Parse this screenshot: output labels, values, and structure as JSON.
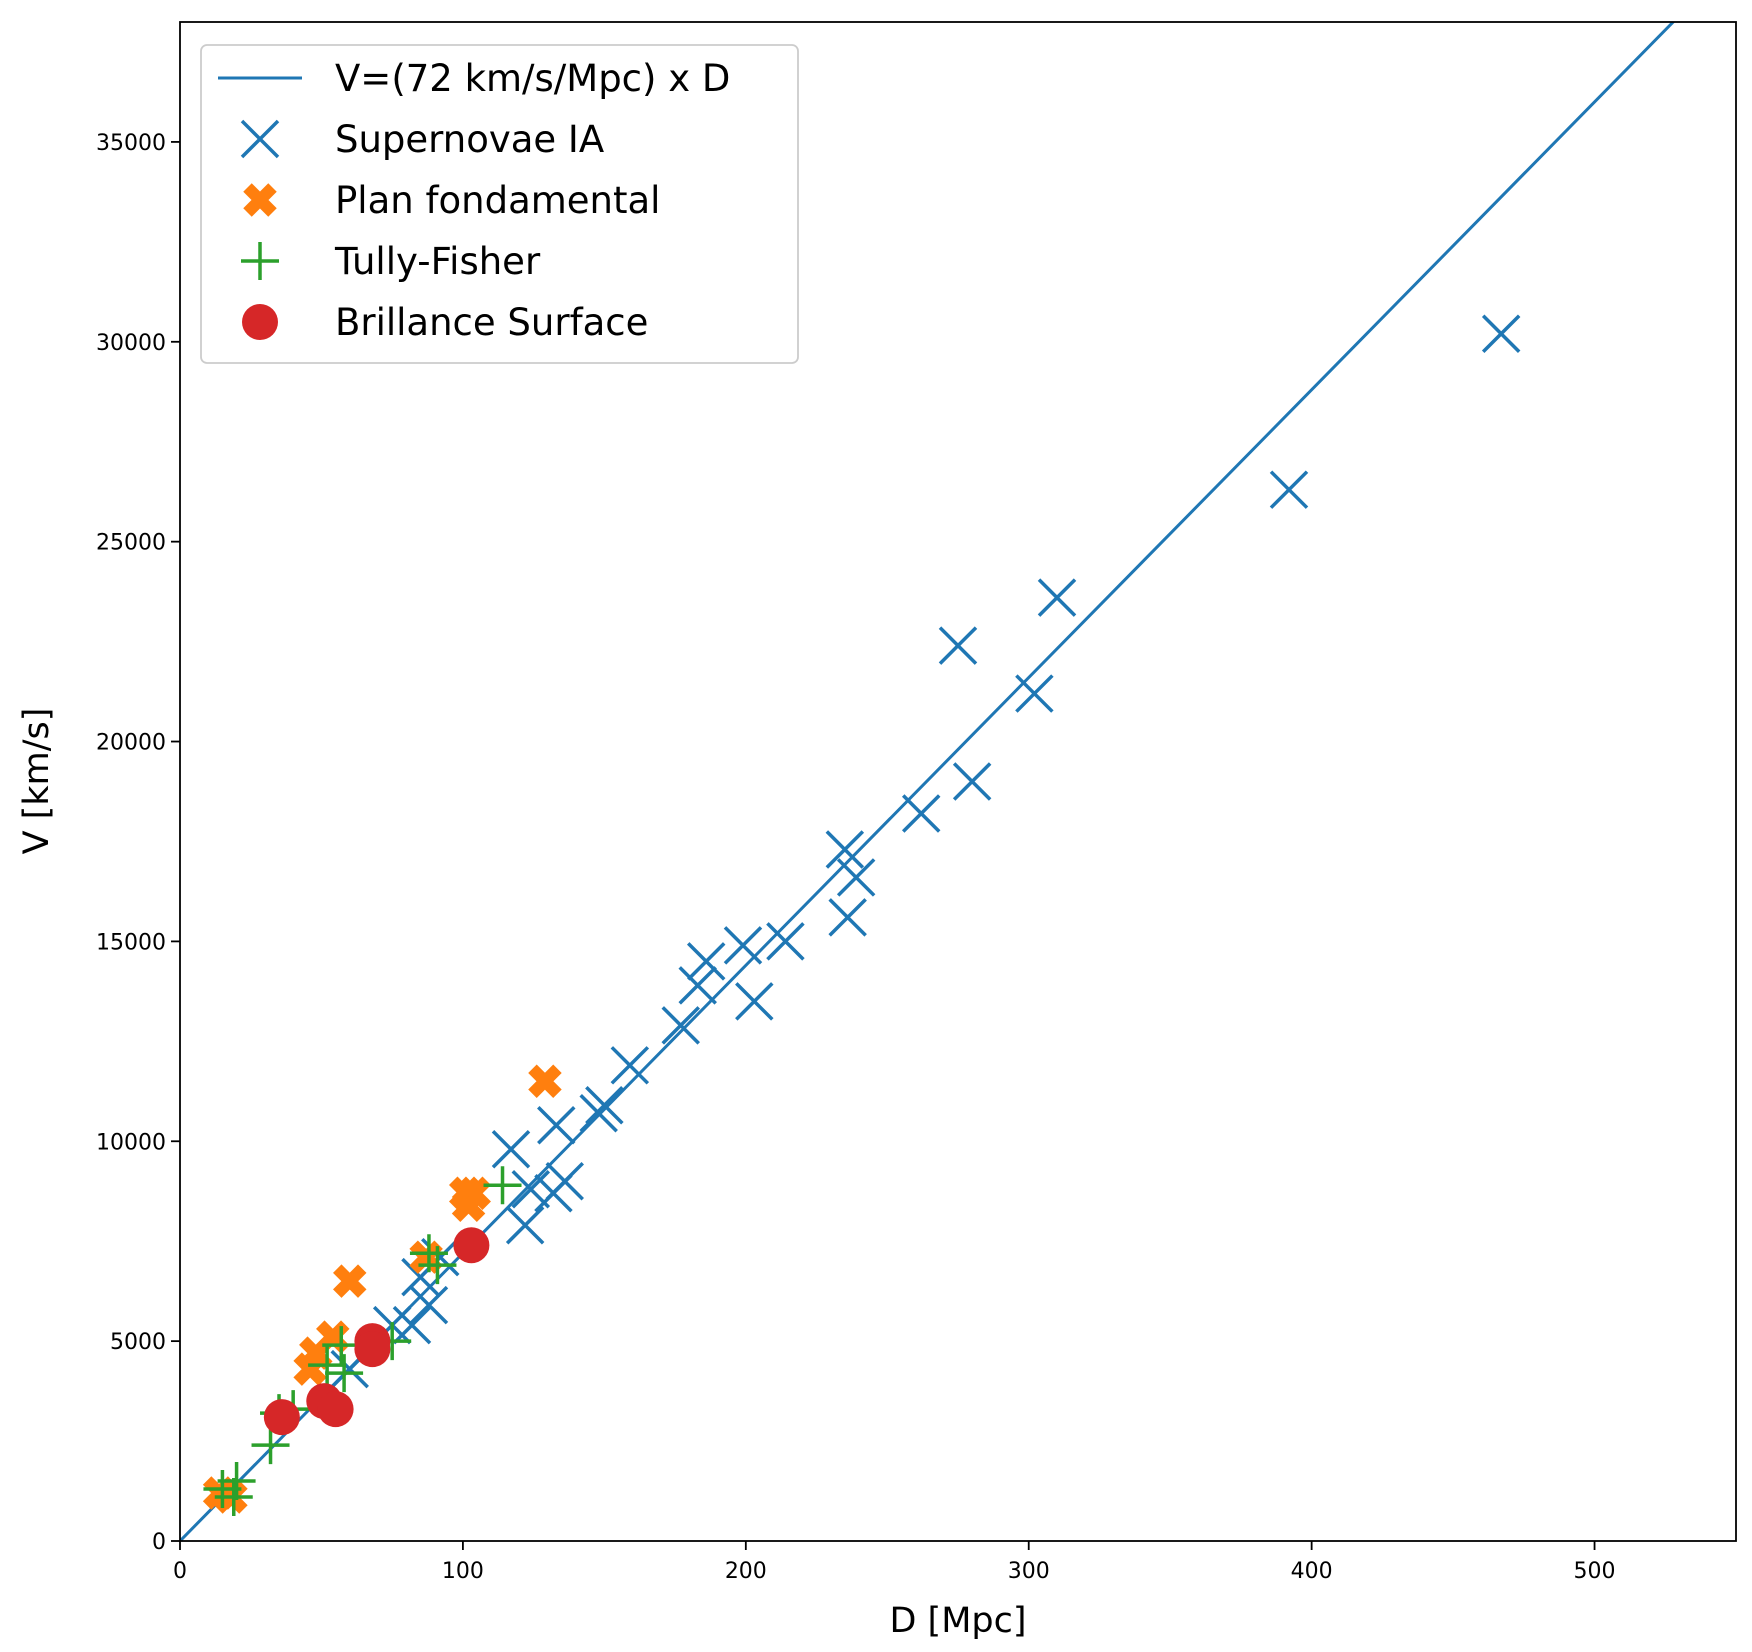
{
  "chart_data": {
    "type": "scatter",
    "title": "",
    "xlabel": "D [Mpc]",
    "ylabel": "V [km/s]",
    "xlim": [
      0,
      550
    ],
    "ylim": [
      0,
      38000
    ],
    "xticks": [
      0,
      100,
      200,
      300,
      400,
      500
    ],
    "yticks": [
      0,
      5000,
      10000,
      15000,
      20000,
      25000,
      30000,
      35000
    ],
    "grid": false,
    "legend_position": "top-left",
    "line": {
      "name": "V=(72 km/s/Mpc) x D",
      "slope": 72,
      "color": "#1f77b4"
    },
    "series": [
      {
        "name": "Supernovae IA",
        "marker": "x",
        "color": "#1f77b4",
        "points": [
          [
            467,
            30200
          ],
          [
            392,
            26300
          ],
          [
            310,
            23600
          ],
          [
            275,
            22400
          ],
          [
            302,
            21200
          ],
          [
            280,
            19000
          ],
          [
            262,
            18200
          ],
          [
            235,
            17300
          ],
          [
            239,
            16600
          ],
          [
            236,
            15600
          ],
          [
            214,
            15000
          ],
          [
            199,
            14900
          ],
          [
            186,
            14500
          ],
          [
            183,
            13900
          ],
          [
            203,
            13500
          ],
          [
            177,
            12900
          ],
          [
            159,
            11900
          ],
          [
            150,
            10900
          ],
          [
            148,
            10700
          ],
          [
            133,
            10400
          ],
          [
            117,
            9800
          ],
          [
            124,
            8800
          ],
          [
            132,
            8700
          ],
          [
            136,
            9000
          ],
          [
            122,
            7900
          ],
          [
            92,
            7100
          ],
          [
            85,
            6600
          ],
          [
            88,
            5900
          ],
          [
            82,
            5400
          ],
          [
            75,
            5400
          ],
          [
            60,
            4300
          ]
        ]
      },
      {
        "name": "Plan fondamental",
        "marker": "X",
        "color": "#ff7f0e",
        "points": [
          [
            129,
            11500
          ],
          [
            101,
            8700
          ],
          [
            104,
            8700
          ],
          [
            102,
            8400
          ],
          [
            60,
            6500
          ],
          [
            87,
            7100
          ],
          [
            54,
            5100
          ],
          [
            48,
            4700
          ],
          [
            46,
            4300
          ],
          [
            14,
            1200
          ],
          [
            18,
            1100
          ]
        ]
      },
      {
        "name": "Tully-Fisher",
        "marker": "+",
        "color": "#2ca02c",
        "points": [
          [
            114,
            8900
          ],
          [
            88,
            7200
          ],
          [
            91,
            6900
          ],
          [
            75,
            5000
          ],
          [
            57,
            4900
          ],
          [
            52,
            4400
          ],
          [
            58,
            4200
          ],
          [
            40,
            3300
          ],
          [
            35,
            3200
          ],
          [
            32,
            2400
          ],
          [
            20,
            1500
          ],
          [
            19,
            1100
          ],
          [
            15,
            1300
          ]
        ]
      },
      {
        "name": "Brillance Surface",
        "marker": "o",
        "color": "#d62728",
        "points": [
          [
            103,
            7400
          ],
          [
            68,
            5000
          ],
          [
            68,
            4800
          ],
          [
            51,
            3500
          ],
          [
            55,
            3300
          ],
          [
            36,
            3100
          ]
        ]
      }
    ]
  }
}
